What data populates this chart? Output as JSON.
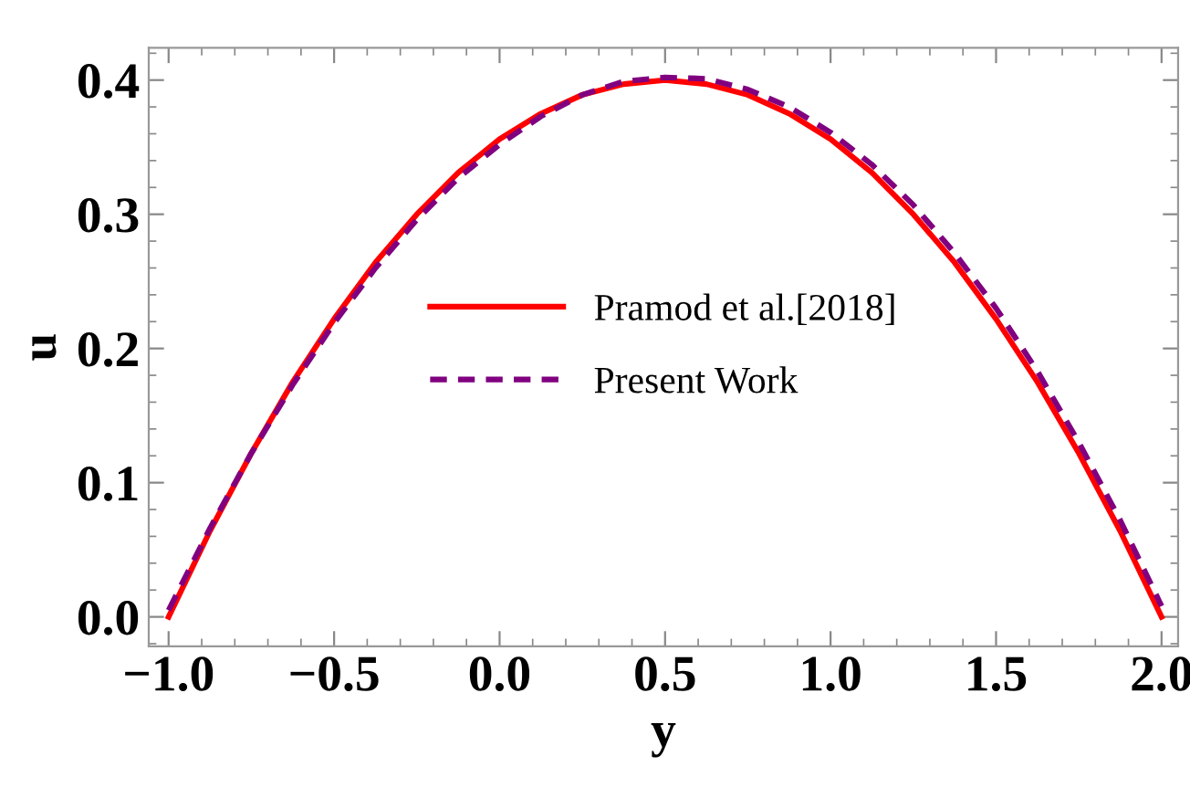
{
  "chart_data": {
    "type": "line",
    "xlabel": "y",
    "ylabel": "u",
    "x": [
      -1,
      -0.875,
      -0.75,
      -0.625,
      -0.5,
      -0.375,
      -0.25,
      -0.125,
      0,
      0.125,
      0.25,
      0.375,
      0.5,
      0.625,
      0.75,
      0.875,
      1,
      1.125,
      1.25,
      1.375,
      1.5,
      1.625,
      1.75,
      1.875,
      2
    ],
    "series": [
      {
        "name": "Pramod et al.[2018]",
        "color": "#ff0000",
        "line_style": "solid",
        "values": [
          0,
          0.064,
          0.122,
          0.175,
          0.222,
          0.264,
          0.3,
          0.331,
          0.356,
          0.375,
          0.389,
          0.397,
          0.4,
          0.397,
          0.389,
          0.375,
          0.356,
          0.331,
          0.3,
          0.264,
          0.222,
          0.175,
          0.122,
          0.064,
          0
        ]
      },
      {
        "name": "Present Work",
        "color": "#800080",
        "line_style": "dashed",
        "values": [
          0.005,
          0.066,
          0.122,
          0.173,
          0.219,
          0.26,
          0.296,
          0.327,
          0.352,
          0.373,
          0.389,
          0.399,
          0.402,
          0.401,
          0.393,
          0.38,
          0.361,
          0.337,
          0.307,
          0.271,
          0.23,
          0.183,
          0.13,
          0.072,
          0.008
        ]
      }
    ],
    "xlim": [
      -1.06,
      2.05
    ],
    "ylim": [
      -0.022,
      0.424
    ],
    "xticks": [
      {
        "value": -1,
        "label": "−1.0"
      },
      {
        "value": -0.5,
        "label": "−0.5"
      },
      {
        "value": 0,
        "label": "0.0"
      },
      {
        "value": 0.5,
        "label": "0.5"
      },
      {
        "value": 1,
        "label": "1.0"
      },
      {
        "value": 1.5,
        "label": "1.5"
      },
      {
        "value": 2,
        "label": "2.0"
      }
    ],
    "yticks": [
      {
        "value": 0,
        "label": "0.0"
      },
      0.1,
      0.2,
      0.3,
      0.4
    ],
    "grid": false,
    "legend": "center"
  }
}
